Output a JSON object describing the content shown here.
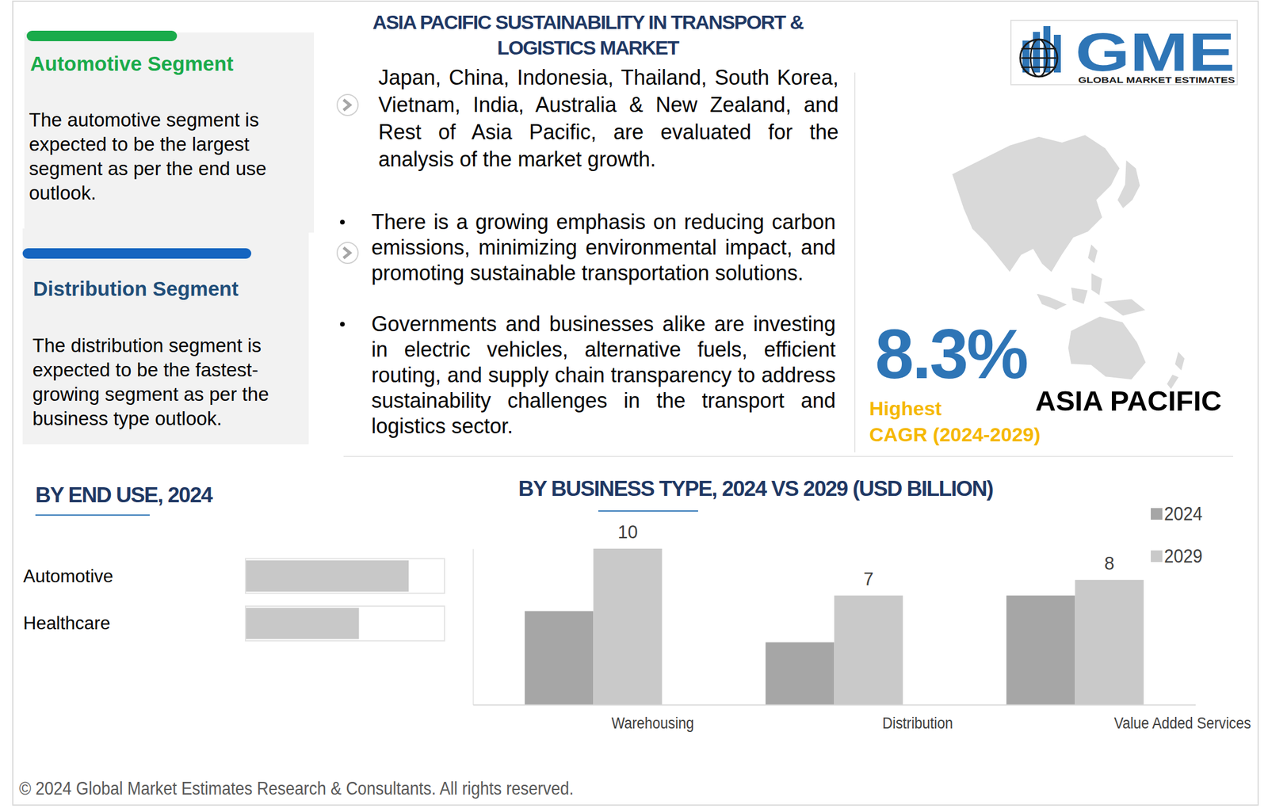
{
  "title_lines": [
    "ASIA PACIFIC SUSTAINABILITY IN TRANSPORT &",
    "LOGISTICS MARKET"
  ],
  "logo": {
    "text": "GME",
    "subtitle": "GLOBAL MARKET ESTIMATES"
  },
  "segments": [
    {
      "title": "Automotive Segment",
      "text": "The automotive segment is expected to be the largest segment as per the end use outlook."
    },
    {
      "title": "Distribution Segment",
      "text": "The distribution segment is expected to be the fastest-growing segment as per the business type outlook."
    }
  ],
  "intro": "Japan, China, Indonesia, Thailand, South Korea, Vietnam, India, Australia & New Zealand, and Rest of Asia Pacific, are evaluated for the analysis of the market growth.",
  "bullets": [
    "There is a growing emphasis on reducing carbon emissions, minimizing environmental impact, and promoting sustainable transportation solutions.",
    "Governments and businesses alike are investing in electric vehicles, alternative fuels, efficient routing, and supply chain transparency to address sustainability challenges in the transport and logistics sector."
  ],
  "highlight": {
    "value": "8.3%",
    "label_lines": [
      "Highest",
      "CAGR (2024-2029)"
    ],
    "region": "ASIA PACIFIC"
  },
  "footer": "© 2024 Global Market Estimates Research & Consultants. All rights reserved.",
  "chart_data": [
    {
      "type": "bar",
      "title": "BY END USE, 2024",
      "orientation": "horizontal",
      "categories": [
        "Automotive",
        "Healthcare"
      ],
      "values": [
        82,
        57
      ],
      "xlim": [
        0,
        100
      ],
      "tick_labels": "y",
      "color": "#c8c8c8"
    },
    {
      "type": "bar",
      "title": "BY BUSINESS TYPE, 2024 VS 2029 (USD BILLION)",
      "categories": [
        "Warehousing",
        "Distribution",
        "Value Added Services"
      ],
      "series": [
        {
          "name": "2024",
          "color": "#a6a6a6",
          "values": [
            6,
            4,
            7
          ]
        },
        {
          "name": "2029",
          "color": "#c9c9c9",
          "values": [
            10,
            7,
            8
          ],
          "data_labels": true
        }
      ],
      "ylim": [
        0,
        10
      ],
      "tick_labels": "x",
      "legend": "top-right"
    }
  ]
}
